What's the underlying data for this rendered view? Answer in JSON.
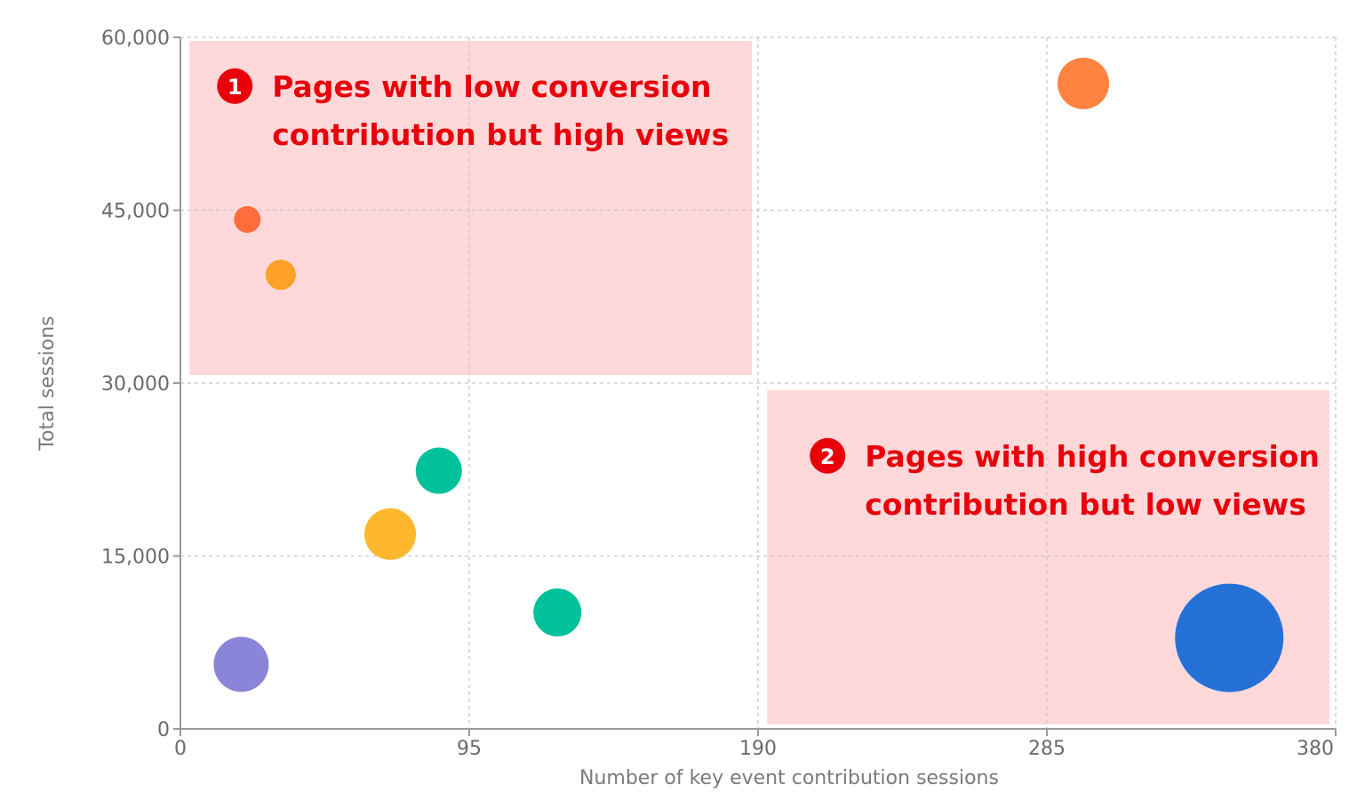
{
  "chart_data": {
    "type": "scatter",
    "title": "",
    "xlabel": "Number of key event contribution sessions",
    "ylabel": "Total sessions",
    "xlim": [
      0,
      380
    ],
    "ylim": [
      0,
      60000
    ],
    "x_ticks": [
      0,
      95,
      190,
      285,
      380
    ],
    "y_ticks": [
      0,
      15000,
      30000,
      45000,
      60000
    ],
    "x_tick_labels": [
      "0",
      "95",
      "190",
      "285",
      "380"
    ],
    "y_tick_labels": [
      "0",
      "15,000",
      "30,000",
      "45,000",
      "60,000"
    ],
    "grid": true,
    "points": [
      {
        "x": 297,
        "y": 56000,
        "size": 29,
        "color": "#ff8340"
      },
      {
        "x": 22,
        "y": 44200,
        "size": 15,
        "color": "#ff6d3d"
      },
      {
        "x": 33,
        "y": 39400,
        "size": 17,
        "color": "#ffa126"
      },
      {
        "x": 85,
        "y": 22400,
        "size": 26,
        "color": "#00c19a"
      },
      {
        "x": 69,
        "y": 16900,
        "size": 29,
        "color": "#ffb82e"
      },
      {
        "x": 124,
        "y": 10100,
        "size": 27,
        "color": "#00c19a"
      },
      {
        "x": 20,
        "y": 5600,
        "size": 31,
        "color": "#8a85d8"
      },
      {
        "x": 345,
        "y": 7900,
        "size": 61,
        "color": "#2470d6"
      }
    ],
    "regions": [
      {
        "x": [
          3,
          188
        ],
        "y": [
          30700,
          59700
        ],
        "color": "#ffd9da",
        "badge": "1",
        "label_lines": [
          "Pages with low conversion",
          "contribution but high views"
        ]
      },
      {
        "x": 193,
        "x_end": 378,
        "y": [
          400,
          29400
        ],
        "color": "#ffd9da",
        "badge": "2",
        "label_lines": [
          "Pages with high conversion",
          "contribution but low views"
        ]
      }
    ],
    "annotation_color": "#e8000b"
  }
}
